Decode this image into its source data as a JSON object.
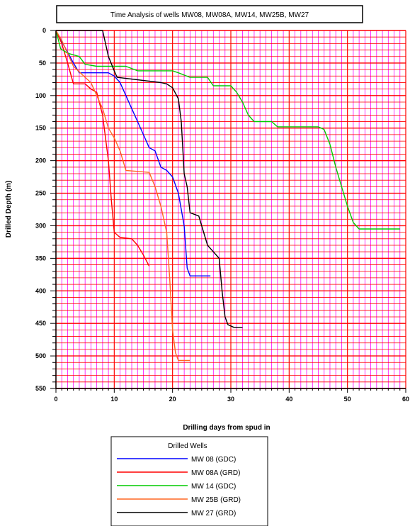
{
  "chart_data": {
    "type": "line",
    "title": "Time Analysis of wells MW08, MW08A, MW14, MW25B, MW27",
    "xlabel": "Drilling days from spud in",
    "ylabel": "Drilled Depth (m)",
    "xlim": [
      0,
      60
    ],
    "ylim": [
      0,
      550
    ],
    "y_inverted": true,
    "x_ticks": [
      0,
      10,
      20,
      30,
      40,
      50,
      60
    ],
    "y_ticks": [
      0,
      50,
      100,
      150,
      200,
      250,
      300,
      350,
      400,
      450,
      500,
      550
    ],
    "grid": true,
    "grid_colors": {
      "major": "#ff0000",
      "minor_vertical": "#ff00ff",
      "minor_horizontal": "#ff0000"
    },
    "legend_title": "Drilled Wells",
    "legend_position": "bottom",
    "series": [
      {
        "name": "MW 08  (GDC)",
        "color": "#0000ff",
        "points": [
          [
            0,
            0
          ],
          [
            0.5,
            10
          ],
          [
            1.5,
            25
          ],
          [
            3,
            50
          ],
          [
            4,
            65
          ],
          [
            9,
            65
          ],
          [
            10,
            70
          ],
          [
            11,
            80
          ],
          [
            13,
            120
          ],
          [
            14,
            140
          ],
          [
            15,
            160
          ],
          [
            16,
            180
          ],
          [
            17,
            185
          ],
          [
            18,
            210
          ],
          [
            19,
            215
          ],
          [
            20,
            225
          ],
          [
            21,
            250
          ],
          [
            22,
            300
          ],
          [
            22.5,
            365
          ],
          [
            23,
            377
          ],
          [
            26.5,
            377
          ]
        ]
      },
      {
        "name": "MW 08A  (GRD)",
        "color": "#ff0000",
        "points": [
          [
            0,
            0
          ],
          [
            1,
            20
          ],
          [
            2,
            50
          ],
          [
            3,
            82
          ],
          [
            5,
            82
          ],
          [
            6,
            90
          ],
          [
            7,
            95
          ],
          [
            8,
            130
          ],
          [
            9,
            200
          ],
          [
            9.5,
            260
          ],
          [
            10,
            310
          ],
          [
            11,
            318
          ],
          [
            13,
            320
          ],
          [
            14,
            330
          ],
          [
            15,
            345
          ],
          [
            16,
            362
          ]
        ]
      },
      {
        "name": "MW 14  (GDC)",
        "color": "#00cc00",
        "points": [
          [
            0,
            0
          ],
          [
            0.8,
            28
          ],
          [
            2,
            35
          ],
          [
            4,
            40
          ],
          [
            5,
            52
          ],
          [
            7,
            55
          ],
          [
            12,
            55
          ],
          [
            14,
            62
          ],
          [
            20,
            62
          ],
          [
            21,
            65
          ],
          [
            23,
            72
          ],
          [
            26,
            72
          ],
          [
            27,
            85
          ],
          [
            30,
            85
          ],
          [
            31,
            95
          ],
          [
            32,
            110
          ],
          [
            33,
            130
          ],
          [
            34,
            140
          ],
          [
            37,
            140
          ],
          [
            38,
            148
          ],
          [
            45,
            148
          ],
          [
            46,
            152
          ],
          [
            47,
            175
          ],
          [
            48,
            210
          ],
          [
            49,
            240
          ],
          [
            50,
            270
          ],
          [
            51,
            295
          ],
          [
            52,
            305
          ],
          [
            59,
            305
          ]
        ]
      },
      {
        "name": "MW 25B  (GRD)",
        "color": "#ff6622",
        "points": [
          [
            0,
            0
          ],
          [
            1,
            15
          ],
          [
            3,
            55
          ],
          [
            5,
            72
          ],
          [
            6,
            80
          ],
          [
            7,
            100
          ],
          [
            8,
            120
          ],
          [
            9,
            150
          ],
          [
            10,
            165
          ],
          [
            11,
            185
          ],
          [
            12,
            215
          ],
          [
            16,
            218
          ],
          [
            17,
            240
          ],
          [
            18,
            270
          ],
          [
            19,
            310
          ],
          [
            19.5,
            380
          ],
          [
            20,
            460
          ],
          [
            20.5,
            495
          ],
          [
            21,
            507
          ],
          [
            23,
            507
          ]
        ]
      },
      {
        "name": "MW 27  (GRD)",
        "color": "#000000",
        "points": [
          [
            0,
            0
          ],
          [
            8,
            0
          ],
          [
            9,
            40
          ],
          [
            10,
            62
          ],
          [
            10.5,
            72
          ],
          [
            18,
            80
          ],
          [
            19,
            82
          ],
          [
            20,
            88
          ],
          [
            21,
            105
          ],
          [
            21.5,
            140
          ],
          [
            22,
            220
          ],
          [
            22.5,
            240
          ],
          [
            23,
            280
          ],
          [
            24.5,
            285
          ],
          [
            25,
            300
          ],
          [
            26,
            330
          ],
          [
            27,
            340
          ],
          [
            28,
            350
          ],
          [
            28.5,
            400
          ],
          [
            29,
            440
          ],
          [
            29.5,
            452
          ],
          [
            30.5,
            456
          ],
          [
            32,
            456
          ]
        ]
      }
    ]
  }
}
